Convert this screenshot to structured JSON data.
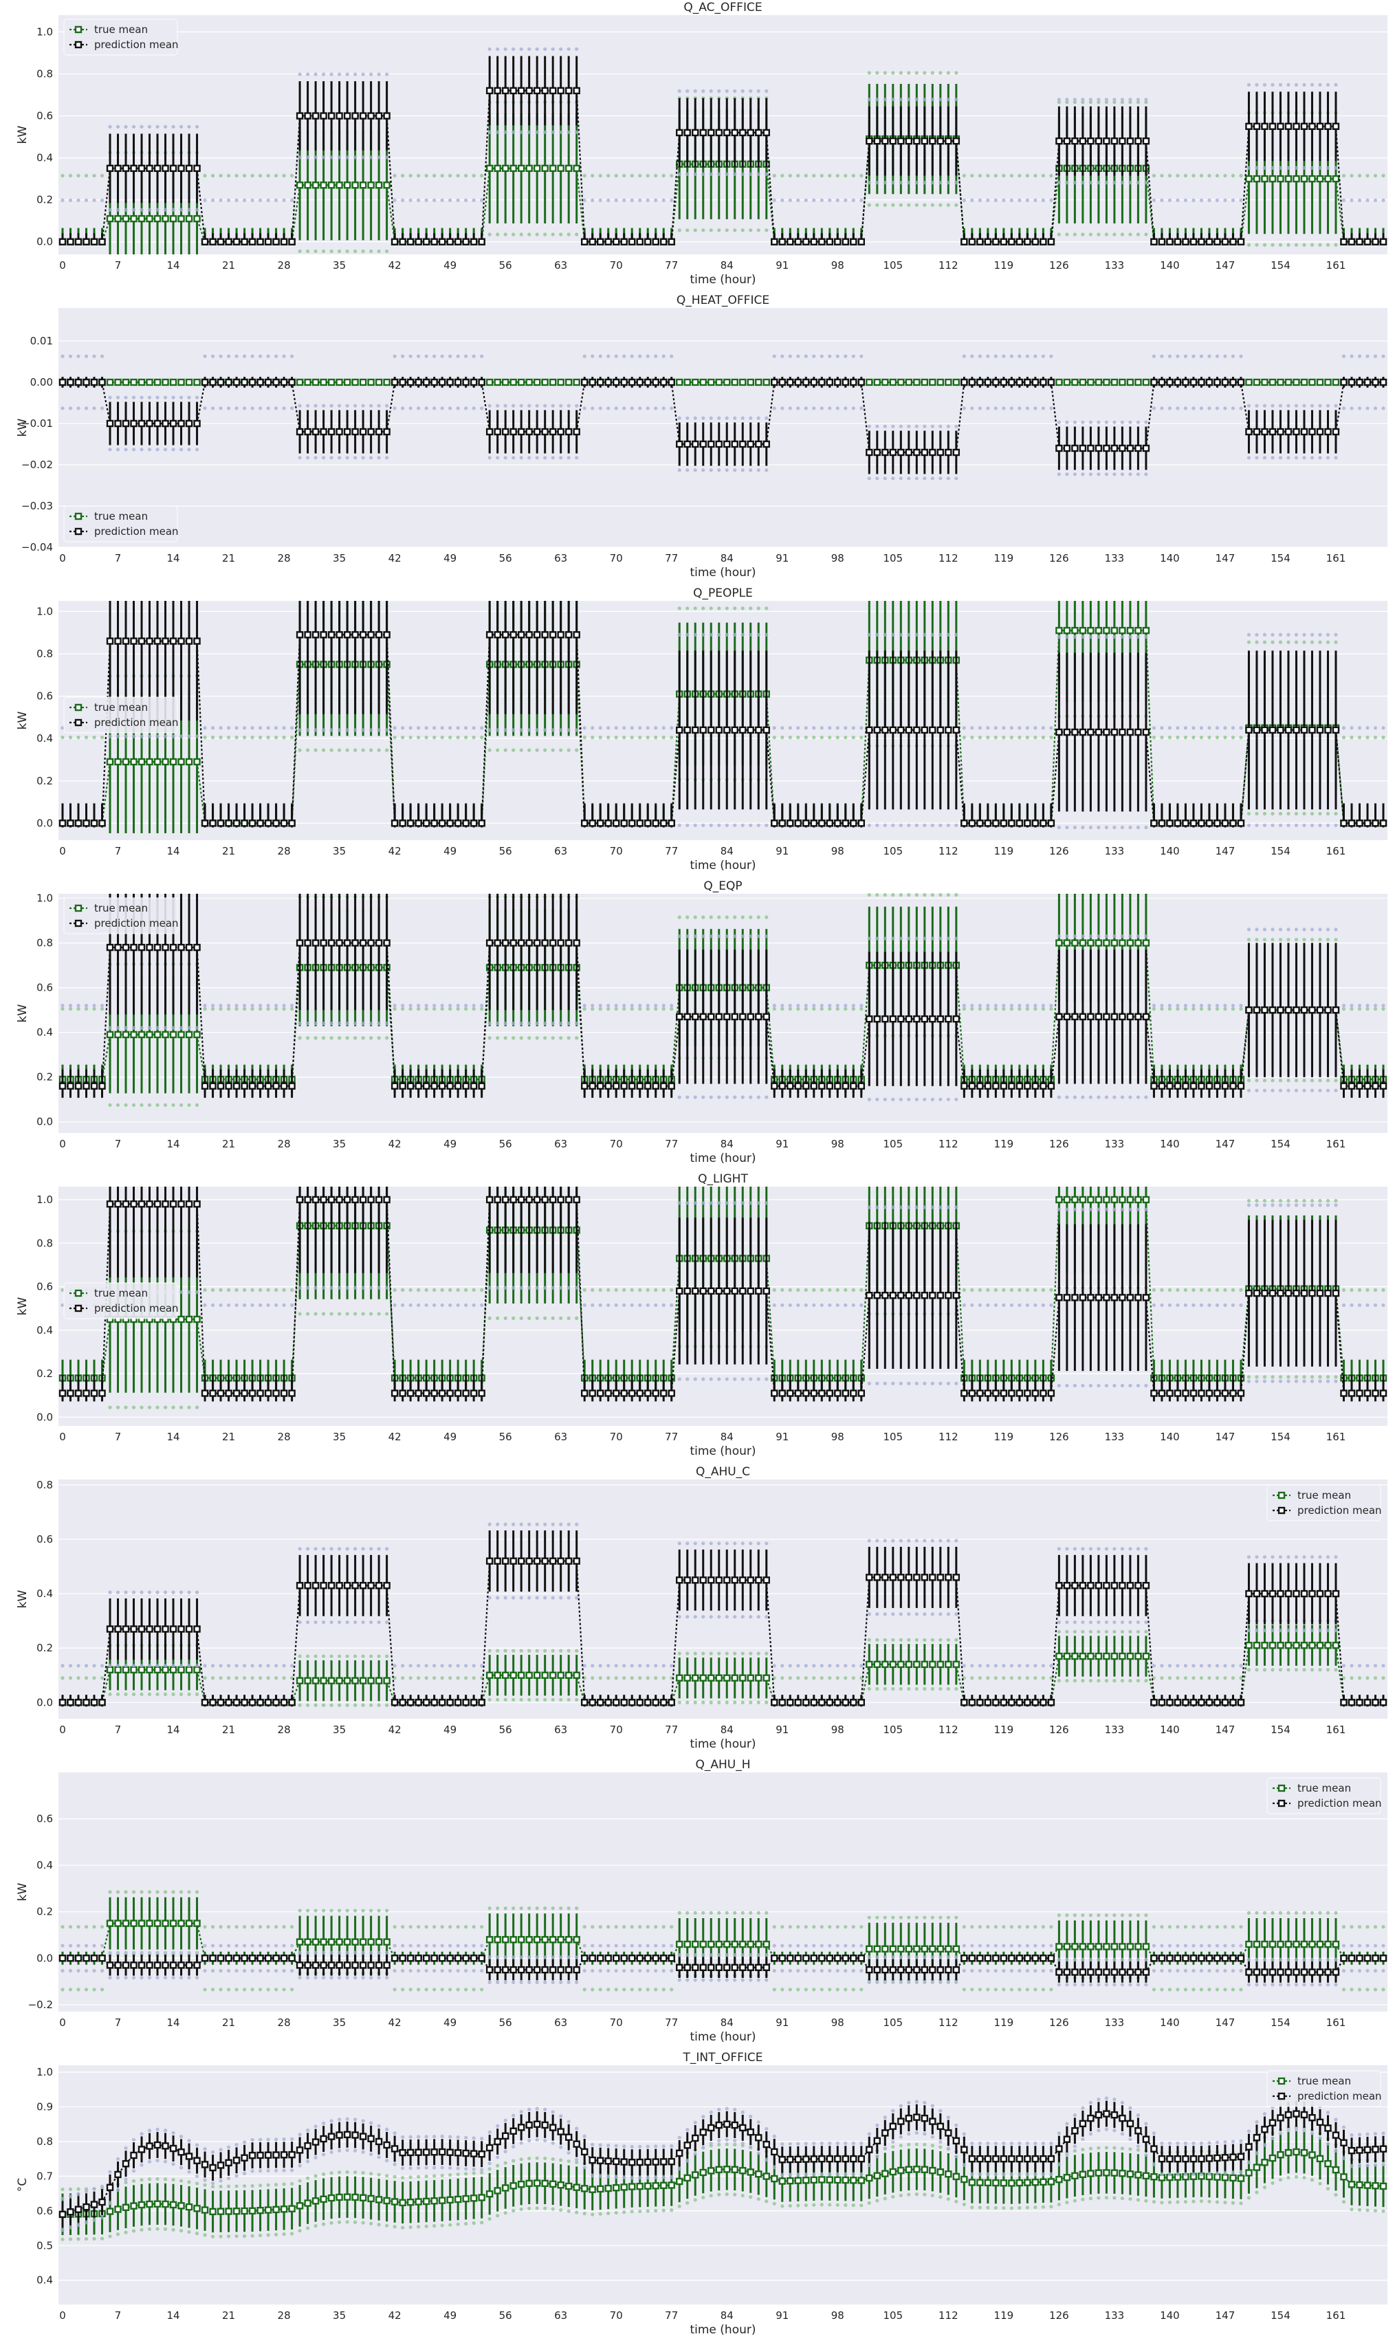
{
  "colors": {
    "plot_bg": "#eaeaf2",
    "grid": "#ffffff",
    "true": "#1a6b1a",
    "pred": "#111111",
    "true_bound": "#8fc48f",
    "pred_bound": "#a9b0d6"
  },
  "x_axis": {
    "label": "time (hour)",
    "ticks": [
      "0",
      "7",
      "14",
      "21",
      "28",
      "35",
      "42",
      "49",
      "56",
      "63",
      "70",
      "77",
      "84",
      "91",
      "98",
      "105",
      "112",
      "119",
      "126",
      "133",
      "140",
      "147",
      "154",
      "161"
    ],
    "range": [
      0,
      167
    ]
  },
  "legend_labels": {
    "true": "true mean",
    "pred": "prediction mean"
  },
  "chart_data": [
    {
      "type": "line",
      "title": "Q_AC_OFFICE",
      "ylabel": "kW",
      "ylim": [
        -0.06,
        1.08
      ],
      "yticks": [
        "0.0",
        "0.2",
        "0.4",
        "0.6",
        "0.8",
        "1.0"
      ],
      "ytick_values": [
        0,
        0.2,
        0.4,
        0.6,
        0.8,
        1.0
      ],
      "legend": "top-left",
      "grid": true,
      "series": [
        {
          "name": "true mean",
          "days": [
            0.11,
            0.27,
            0.35,
            0.37,
            0.49,
            0.35,
            0.3
          ],
          "err": 0.35
        },
        {
          "name": "prediction mean",
          "days": [
            0.35,
            0.6,
            0.72,
            0.52,
            0.48,
            0.48,
            0.55
          ],
          "err": 0.22
        }
      ]
    },
    {
      "type": "line",
      "title": "Q_HEAT_OFFICE",
      "ylabel": "kW",
      "ylim": [
        -0.04,
        0.018
      ],
      "yticks": [
        "−0.04",
        "−0.03",
        "−0.02",
        "−0.01",
        "0.00",
        "0.01"
      ],
      "ytick_values": [
        -0.04,
        -0.03,
        -0.02,
        -0.01,
        0,
        0.01
      ],
      "legend": "bottom-left",
      "grid": true,
      "series": [
        {
          "name": "true mean",
          "days": [
            0,
            0,
            0,
            0,
            0,
            0,
            0
          ],
          "err": 0
        },
        {
          "name": "prediction mean",
          "days": [
            -0.01,
            -0.012,
            -0.012,
            -0.015,
            -0.017,
            -0.016,
            -0.012
          ],
          "err": 0.007
        }
      ]
    },
    {
      "type": "line",
      "title": "Q_PEOPLE",
      "ylabel": "kW",
      "ylim": [
        -0.08,
        1.05
      ],
      "yticks": [
        "0.0",
        "0.2",
        "0.4",
        "0.6",
        "0.8",
        "1.0"
      ],
      "ytick_values": [
        0,
        0.2,
        0.4,
        0.6,
        0.8,
        1.0
      ],
      "legend": "middle-left",
      "grid": true,
      "series": [
        {
          "name": "true mean",
          "days": [
            0.29,
            0.75,
            0.75,
            0.61,
            0.77,
            0.91,
            0.45
          ],
          "err": 0.45
        },
        {
          "name": "prediction mean",
          "days": [
            0.86,
            0.89,
            0.89,
            0.44,
            0.44,
            0.43,
            0.44
          ],
          "err": 0.5
        }
      ]
    },
    {
      "type": "line",
      "title": "Q_EQP",
      "ylabel": "kW",
      "ylim": [
        -0.05,
        1.02
      ],
      "yticks": [
        "0.0",
        "0.2",
        "0.4",
        "0.6",
        "0.8",
        "1.0"
      ],
      "ytick_values": [
        0,
        0.2,
        0.4,
        0.6,
        0.8,
        1.0
      ],
      "legend": "top-left",
      "grid": true,
      "series": [
        {
          "name": "true mean",
          "days": [
            0.39,
            0.69,
            0.69,
            0.6,
            0.7,
            0.8,
            0.5
          ],
          "base": 0.19,
          "err": 0.35
        },
        {
          "name": "prediction mean",
          "days": [
            0.78,
            0.8,
            0.8,
            0.47,
            0.46,
            0.47,
            0.5
          ],
          "base": 0.16,
          "err": 0.4
        }
      ]
    },
    {
      "type": "line",
      "title": "Q_LIGHT",
      "ylabel": "kW",
      "ylim": [
        -0.04,
        1.06
      ],
      "yticks": [
        "0.0",
        "0.2",
        "0.4",
        "0.6",
        "0.8",
        "1.0"
      ],
      "ytick_values": [
        0,
        0.2,
        0.4,
        0.6,
        0.8,
        1.0
      ],
      "legend": "middle-left",
      "grid": true,
      "series": [
        {
          "name": "true mean",
          "days": [
            0.45,
            0.88,
            0.86,
            0.73,
            0.88,
            1.0,
            0.59
          ],
          "base": 0.18,
          "err": 0.45
        },
        {
          "name": "prediction mean",
          "days": [
            0.98,
            1.0,
            1.0,
            0.58,
            0.56,
            0.55,
            0.57
          ],
          "base": 0.11,
          "err": 0.45
        }
      ]
    },
    {
      "type": "line",
      "title": "Q_AHU_C",
      "ylabel": "kW",
      "ylim": [
        -0.06,
        0.82
      ],
      "yticks": [
        "0.0",
        "0.2",
        "0.4",
        "0.6",
        "0.8"
      ],
      "ytick_values": [
        0,
        0.2,
        0.4,
        0.6,
        0.8
      ],
      "legend": "top-right",
      "grid": true,
      "series": [
        {
          "name": "true mean",
          "days": [
            0.12,
            0.08,
            0.1,
            0.09,
            0.14,
            0.17,
            0.21
          ],
          "err": 0.1
        },
        {
          "name": "prediction mean",
          "days": [
            0.27,
            0.43,
            0.52,
            0.45,
            0.46,
            0.43,
            0.4
          ],
          "err": 0.15
        }
      ]
    },
    {
      "type": "line",
      "title": "Q_AHU_H",
      "ylabel": "kW",
      "ylim": [
        -0.23,
        0.8
      ],
      "yticks": [
        "−0.2",
        "0.0",
        "0.2",
        "0.4",
        "0.6"
      ],
      "ytick_values": [
        -0.2,
        0,
        0.2,
        0.4,
        0.6
      ],
      "legend": "top-right",
      "grid": true,
      "series": [
        {
          "name": "true mean",
          "days": [
            0.15,
            0.07,
            0.08,
            0.06,
            0.04,
            0.05,
            0.06
          ],
          "err": 0.15
        },
        {
          "name": "prediction mean",
          "days": [
            -0.03,
            -0.03,
            -0.05,
            -0.04,
            -0.05,
            -0.06,
            -0.06
          ],
          "err": 0.06
        }
      ]
    },
    {
      "type": "line",
      "title": "T_INT_OFFICE",
      "ylabel": "°C",
      "ylim": [
        0.33,
        1.02
      ],
      "yticks": [
        "0.4",
        "0.5",
        "0.6",
        "0.7",
        "0.8",
        "0.9",
        "1.0"
      ],
      "ytick_values": [
        0.4,
        0.5,
        0.6,
        0.7,
        0.8,
        0.9,
        1.0
      ],
      "legend": "top-right",
      "grid": true,
      "series": [
        {
          "name": "true mean",
          "nights": [
            0.59,
            0.6,
            0.63,
            0.67,
            0.69,
            0.68,
            0.7,
            0.67
          ],
          "days": [
            0.62,
            0.64,
            0.68,
            0.72,
            0.72,
            0.71,
            0.77
          ],
          "err": 0.08
        },
        {
          "name": "prediction mean",
          "nights": [
            0.59,
            0.76,
            0.77,
            0.74,
            0.75,
            0.75,
            0.75,
            0.78
          ],
          "days": [
            0.79,
            0.82,
            0.85,
            0.85,
            0.87,
            0.88,
            0.88
          ],
          "err": 0.05
        }
      ]
    }
  ]
}
